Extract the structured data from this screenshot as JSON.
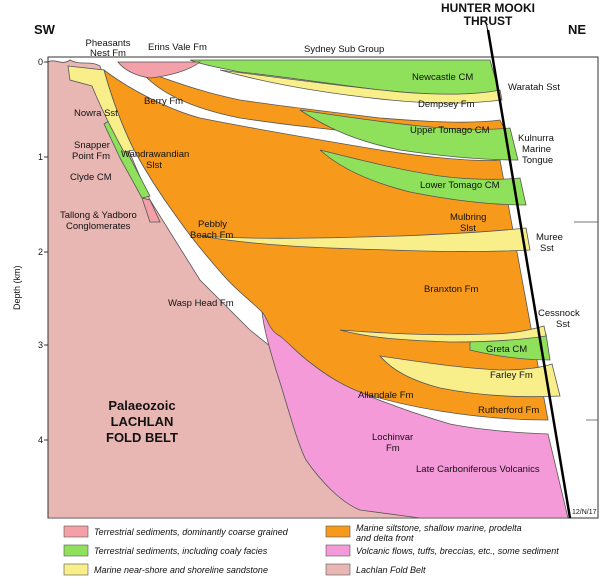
{
  "directions": {
    "left": "SW",
    "right": "NE"
  },
  "thrust": {
    "line1": "HUNTER MOOKI",
    "line2": "THRUST"
  },
  "axis": {
    "label": "Depth (km)",
    "ticks": [
      "0",
      "1",
      "2",
      "3",
      "4"
    ]
  },
  "fold_belt": {
    "line1": "Palaeozoic",
    "line2": "LACHLAN",
    "line3": "FOLD BELT"
  },
  "units": {
    "pheasants_nest_1": "Pheasants",
    "pheasants_nest_2": "Nest Fm",
    "erins_vale": "Erins Vale Fm",
    "sydney_sub_group": "Sydney Sub Group",
    "newcastle": "Newcastle CM",
    "waratah": "Waratah Sst",
    "dempsey": "Dempsey Fm",
    "berry": "Berry Fm",
    "nowra": "Nowra Sst",
    "upper_tomago": "Upper Tomago CM",
    "kulnurra_1": "Kulnurra",
    "kulnurra_2": "Marine",
    "kulnurra_3": "Tongue",
    "snapper_1": "Snapper",
    "snapper_2": "Point Fm",
    "wandrawandian_1": "Wandrawandian",
    "wandrawandian_2": "Slst",
    "clyde": "Clyde CM",
    "lower_tomago": "Lower Tomago CM",
    "tallong_1": "Tallong & Yadboro",
    "tallong_2": "Conglomerates",
    "mulbring_1": "Mulbring",
    "mulbring_2": "Slst",
    "muree_1": "Muree",
    "muree_2": "Sst",
    "pebbly_1": "Pebbly",
    "pebbly_2": "Beach Fm",
    "branxton": "Branxton Fm",
    "wasp_head": "Wasp Head Fm",
    "cessnock_1": "Cessnock",
    "cessnock_2": "Sst",
    "greta": "Greta CM",
    "farley": "Farley Fm",
    "allandale": "Allandale Fm",
    "rutherford": "Rutherford Fm",
    "lochinvar_1": "Lochinvar",
    "lochinvar_2": "Fm",
    "late_carboniferous": "Late Carboniferous Volcanics"
  },
  "ref_code": "12/N/17",
  "legend": [
    {
      "color": "#f4a0a8",
      "text": "Terrestrial sediments, dominantly coarse grained"
    },
    {
      "color": "#8fe05a",
      "text": "Terrestrial sediments, including coaly facies"
    },
    {
      "color": "#f8ee8a",
      "text": "Marine near-shore and shoreline sandstone"
    },
    {
      "color": "#f79a1c",
      "text": "Marine siltstone, shallow marine, prodelta and delta front"
    },
    {
      "color": "#f59ad8",
      "text": "Volcanic flows, tuffs, breccias, etc., some sediment"
    },
    {
      "color": "#e8b7b4",
      "text": "Lachlan Fold Belt"
    }
  ]
}
